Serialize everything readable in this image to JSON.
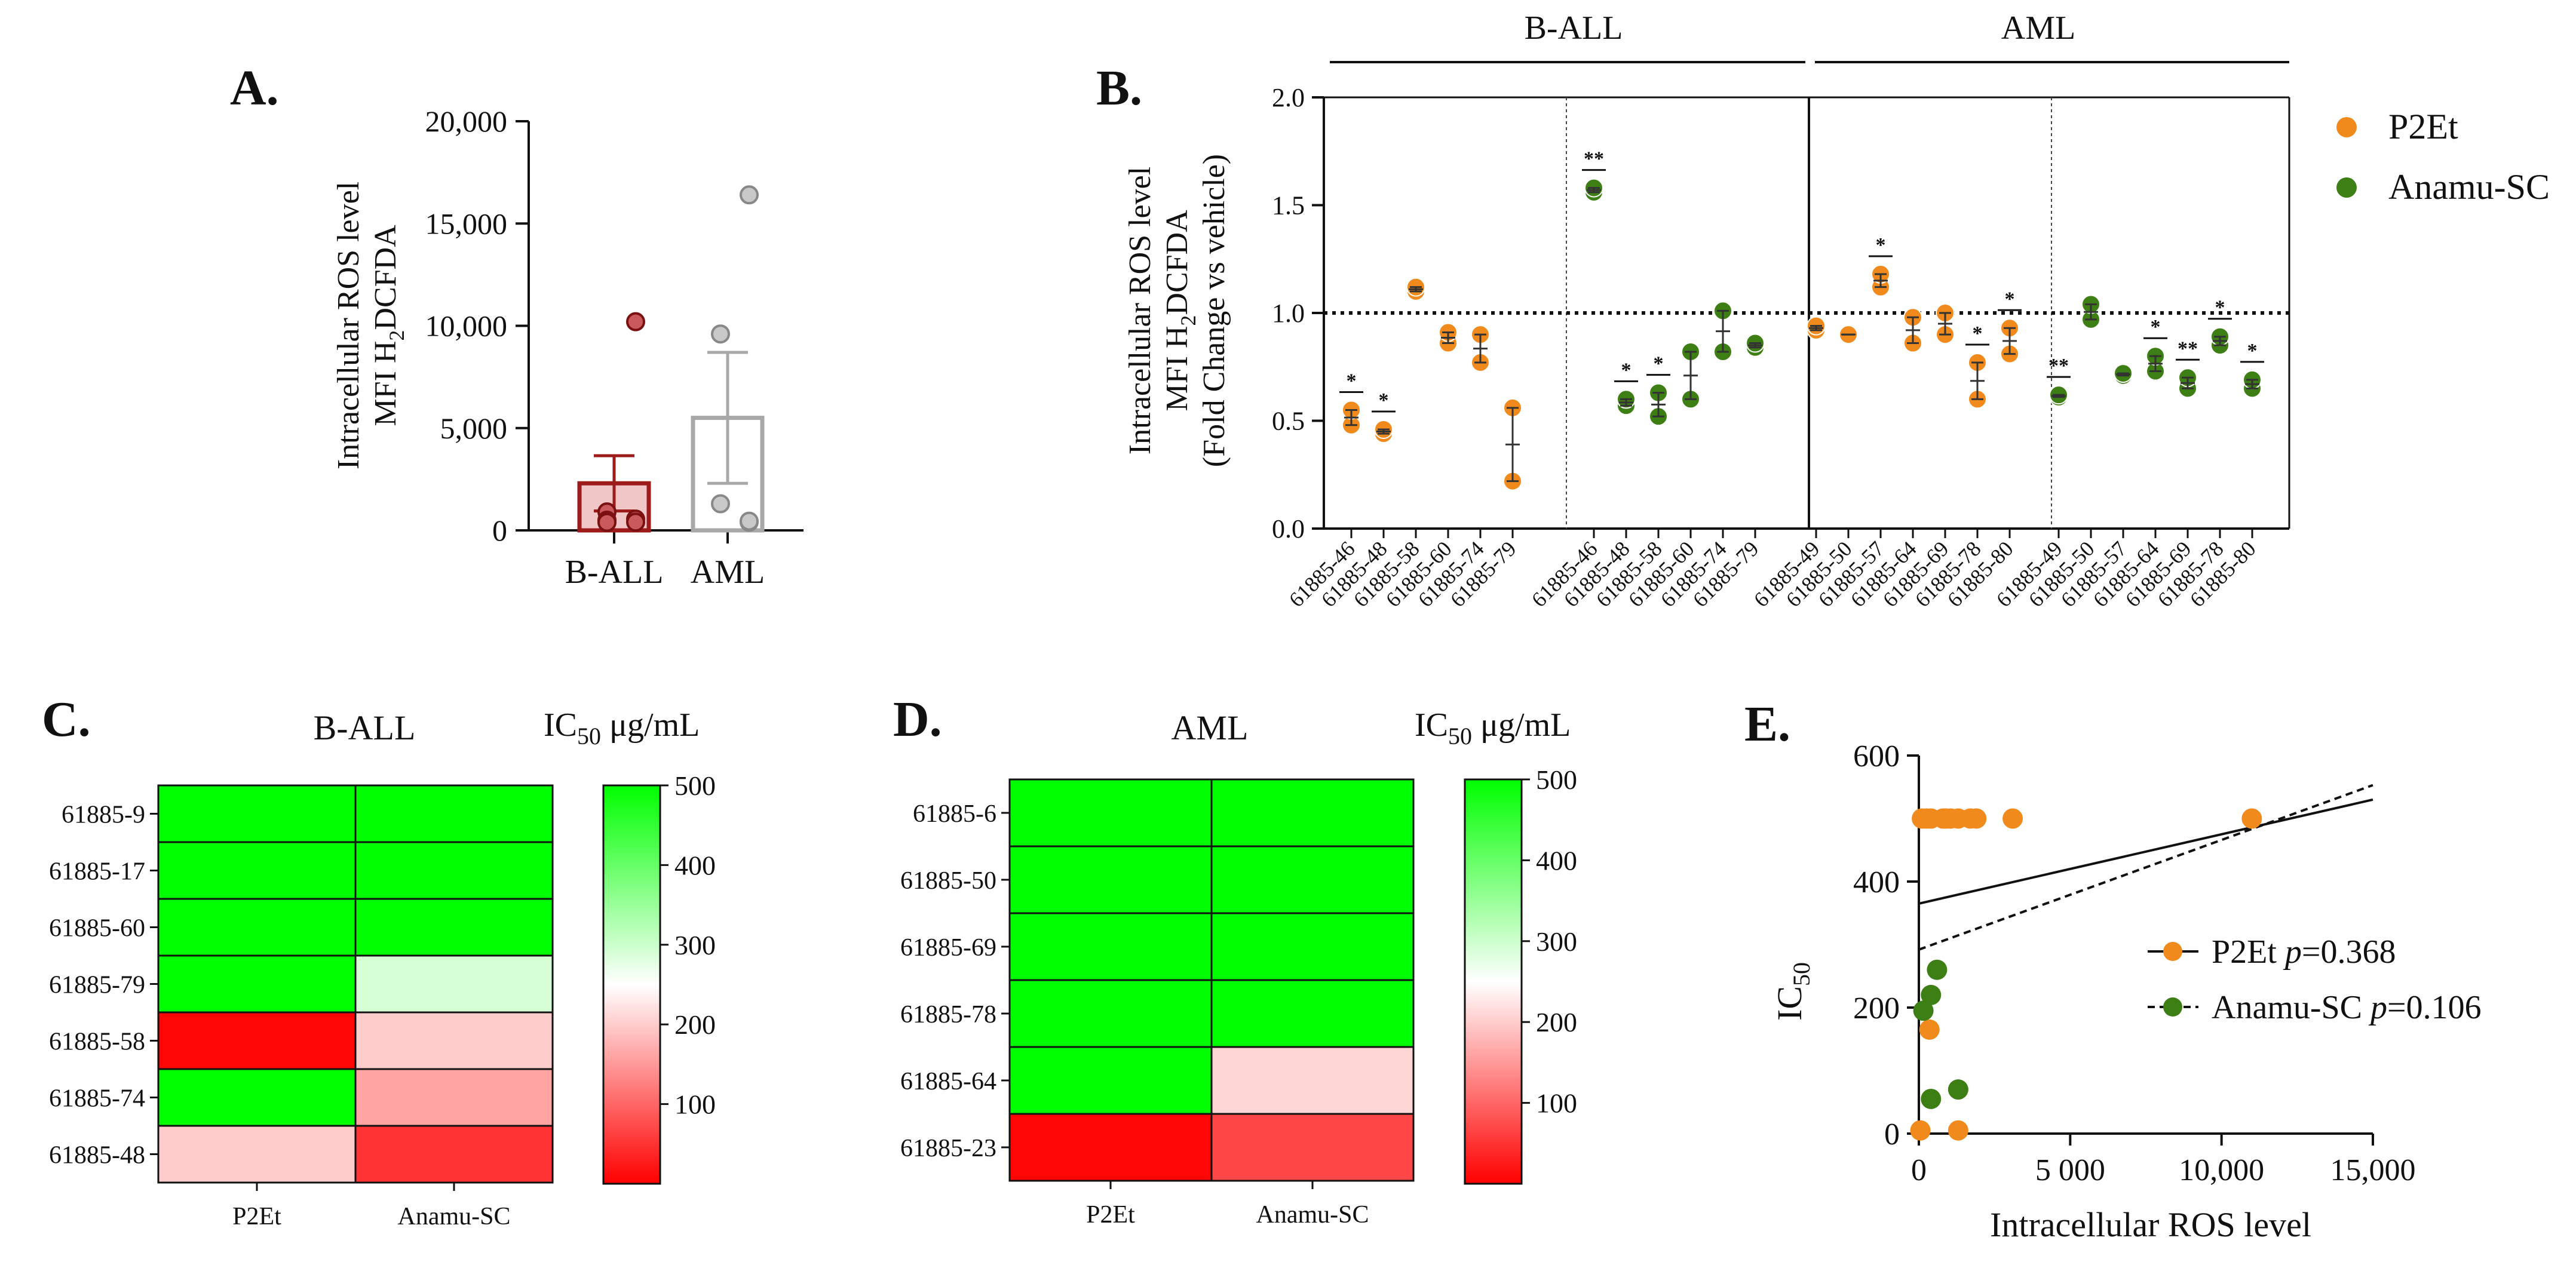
{
  "colors": {
    "p2et": "#f08a1c",
    "anamu": "#3d7f14",
    "ball_bar": "#9e1b1b",
    "ball_fill": "#f1c6c6",
    "ball_dot": "#c9595b",
    "aml_bar": "#a8a8a8",
    "aml_dot": "#c8c8c8",
    "heat_high": "#00ff00",
    "heat_mid": "#ffffff",
    "heat_low": "#ff0000"
  },
  "chart_data": [
    {
      "id": "A",
      "panel_label": "A.",
      "type": "bar",
      "ylabel_line1": "Intracellular ROS level",
      "ylabel_line2_prefix": "MFI H",
      "ylabel_line2_sub": "2",
      "ylabel_line2_suffix": "DCFDA",
      "ylim": [
        0,
        20000
      ],
      "yticks": [
        0,
        5000,
        10000,
        15000,
        20000
      ],
      "ytick_labels": [
        "0",
        "5,000",
        "10,000",
        "15,000",
        "20,000"
      ],
      "categories": [
        "B-ALL",
        "AML"
      ],
      "means": [
        2300,
        5500
      ],
      "sem": [
        1350,
        3200
      ],
      "points": [
        [
          10200,
          900,
          500,
          200,
          50,
          100,
          40
        ],
        [
          16400,
          9600,
          1300,
          50,
          100
        ]
      ]
    },
    {
      "id": "B",
      "panel_label": "B.",
      "type": "scatter",
      "ylabel_line1": "Intracellular ROS level",
      "ylabel_line2_prefix": "MFI H",
      "ylabel_line2_sub": "2",
      "ylabel_line2_suffix": "DCFDA",
      "ylabel_line3": "(Fold Change vs vehicle)",
      "ylim": [
        0,
        2.0
      ],
      "yticks": [
        0,
        0.5,
        1.0,
        1.5,
        2.0
      ],
      "ytick_labels": [
        "0.0",
        "0.5",
        "1.0",
        "1.5",
        "2.0"
      ],
      "reference_line": 1.0,
      "groups": [
        "B-ALL",
        "AML"
      ],
      "legend": [
        "P2Et",
        "Anamu-SC"
      ],
      "sections": [
        {
          "group": "B-ALL",
          "treatment": "P2Et",
          "labels": [
            "61885-46",
            "61885-48",
            "61885-58",
            "61885-60",
            "61885-74",
            "61885-79"
          ],
          "values": [
            [
              0.48,
              0.55
            ],
            [
              0.44,
              0.46
            ],
            [
              1.1,
              1.12
            ],
            [
              0.86,
              0.91
            ],
            [
              0.77,
              0.9
            ],
            [
              0.22,
              0.56
            ]
          ],
          "stars": [
            "*",
            "*",
            "",
            "",
            "",
            ""
          ]
        },
        {
          "group": "B-ALL",
          "treatment": "Anamu-SC",
          "labels": [
            "61885-46",
            "61885-48",
            "61885-58",
            "61885-60",
            "61885-74",
            "61885-79"
          ],
          "values": [
            [
              1.56,
              1.58
            ],
            [
              0.57,
              0.6
            ],
            [
              0.52,
              0.63
            ],
            [
              0.6,
              0.82
            ],
            [
              0.82,
              1.01
            ],
            [
              0.84,
              0.86
            ]
          ],
          "stars": [
            "**",
            "*",
            "*",
            "",
            "",
            ""
          ]
        },
        {
          "group": "AML",
          "treatment": "P2Et",
          "labels": [
            "61885-49",
            "61885-50",
            "61885-57",
            "61885-64",
            "61885-69",
            "61885-78",
            "61885-80"
          ],
          "values": [
            [
              0.92,
              0.94
            ],
            [
              0.9,
              0.9
            ],
            [
              1.12,
              1.18
            ],
            [
              0.86,
              0.98
            ],
            [
              0.9,
              1.0
            ],
            [
              0.6,
              0.77
            ],
            [
              0.81,
              0.93
            ]
          ],
          "stars": [
            "",
            "",
            "*",
            "",
            "",
            "*",
            "*"
          ]
        },
        {
          "group": "AML",
          "treatment": "Anamu-SC",
          "labels": [
            "61885-49",
            "61885-50",
            "61885-57",
            "61885-64",
            "61885-69",
            "61885-78",
            "61885-80"
          ],
          "values": [
            [
              0.61,
              0.62
            ],
            [
              0.97,
              1.04
            ],
            [
              0.71,
              0.72
            ],
            [
              0.73,
              0.8
            ],
            [
              0.65,
              0.7
            ],
            [
              0.85,
              0.89
            ],
            [
              0.65,
              0.69
            ]
          ],
          "stars": [
            "**",
            "",
            "",
            "*",
            "**",
            "*",
            "*"
          ]
        }
      ]
    },
    {
      "id": "C",
      "panel_label": "C.",
      "type": "heatmap",
      "title": "B-ALL",
      "scale_title_prefix": "IC",
      "scale_title_sub": "50",
      "scale_title_suffix": " μg/mL",
      "rows": [
        "61885-9",
        "61885-17",
        "61885-60",
        "61885-79",
        "61885-58",
        "61885-74",
        "61885-48"
      ],
      "columns": [
        "P2Et",
        "Anamu-SC"
      ],
      "values": [
        [
          500,
          500
        ],
        [
          500,
          500
        ],
        [
          500,
          500
        ],
        [
          500,
          290
        ],
        [
          5,
          200
        ],
        [
          500,
          160
        ],
        [
          200,
          50
        ]
      ],
      "scale_ticks": [
        100,
        200,
        300,
        400,
        500
      ],
      "scale_range": [
        0,
        500
      ]
    },
    {
      "id": "D",
      "panel_label": "D.",
      "type": "heatmap",
      "title": "AML",
      "scale_title_prefix": "IC",
      "scale_title_sub": "50",
      "scale_title_suffix": " μg/mL",
      "rows": [
        "61885-6",
        "61885-50",
        "61885-69",
        "61885-78",
        "61885-64",
        "61885-23"
      ],
      "columns": [
        "P2Et",
        "Anamu-SC"
      ],
      "values": [
        [
          500,
          500
        ],
        [
          500,
          500
        ],
        [
          500,
          500
        ],
        [
          500,
          500
        ],
        [
          500,
          210
        ],
        [
          5,
          70
        ]
      ],
      "scale_ticks": [
        100,
        200,
        300,
        400,
        500
      ],
      "scale_range": [
        0,
        500
      ]
    },
    {
      "id": "E",
      "panel_label": "E.",
      "type": "scatter",
      "xlabel": "Intracellular ROS level",
      "ylabel_prefix": "IC",
      "ylabel_sub": "50",
      "xlim": [
        0,
        15000
      ],
      "ylim": [
        0,
        600
      ],
      "xticks": [
        0,
        5000,
        10000,
        15000
      ],
      "xtick_labels": [
        "0",
        "5 000",
        "10,000",
        "15,000"
      ],
      "yticks": [
        0,
        200,
        400,
        600
      ],
      "ytick_labels": [
        "0",
        "200",
        "400",
        "600"
      ],
      "series": [
        {
          "name": "P2Et",
          "p_label": "p",
          "p_value": "=0.368",
          "points": [
            [
              100,
              500
            ],
            [
              250,
              500
            ],
            [
              400,
              500
            ],
            [
              800,
              500
            ],
            [
              900,
              500
            ],
            [
              1050,
              500
            ],
            [
              1300,
              500
            ],
            [
              1700,
              500
            ],
            [
              1900,
              500
            ],
            [
              3100,
              500
            ],
            [
              11000,
              500
            ],
            [
              350,
              165
            ],
            [
              50,
              5
            ],
            [
              1300,
              5
            ]
          ],
          "fit": [
            [
              0,
              365
            ],
            [
              15000,
              530
            ]
          ]
        },
        {
          "name": "Anamu-SC",
          "p_label": "p",
          "p_value": "=0.106",
          "points": [
            [
              150,
              195
            ],
            [
              400,
              220
            ],
            [
              600,
              260
            ],
            [
              400,
              55
            ],
            [
              1300,
              70
            ]
          ],
          "fit": [
            [
              0,
              292
            ],
            [
              15000,
              553
            ]
          ]
        }
      ]
    }
  ]
}
